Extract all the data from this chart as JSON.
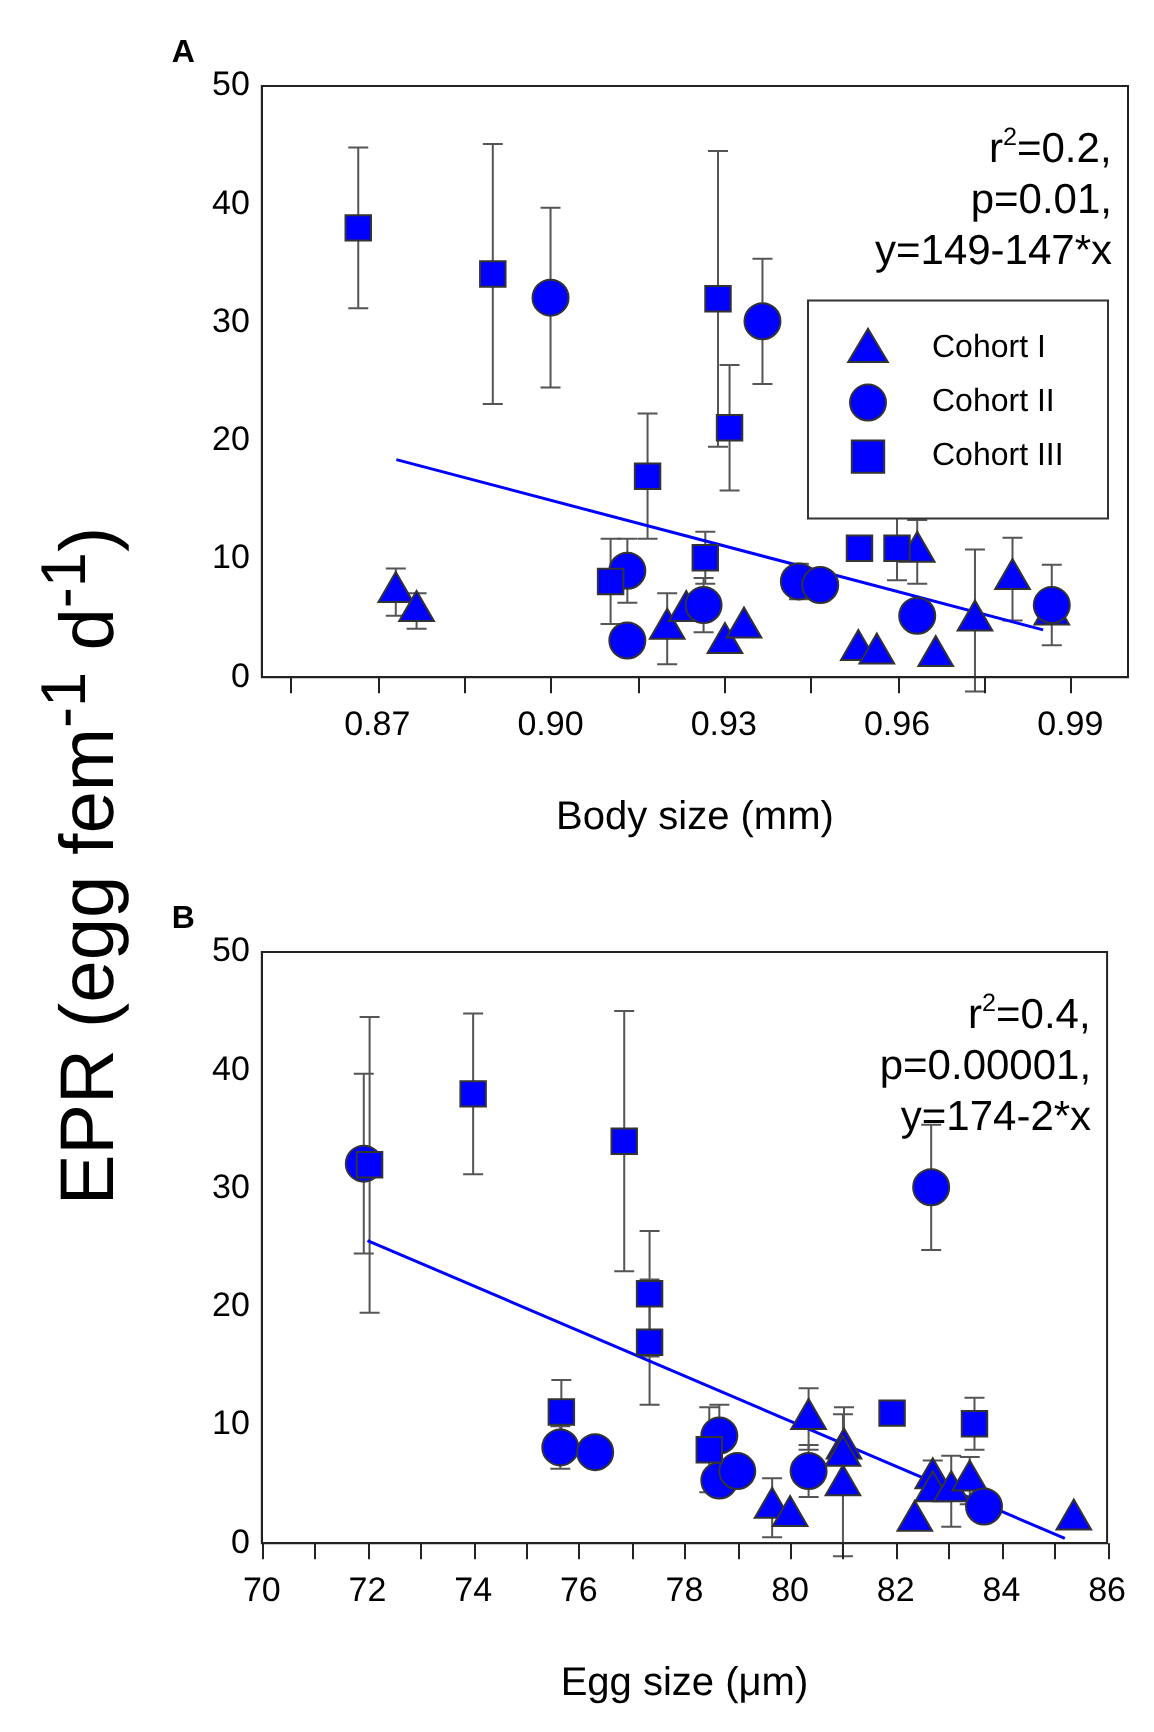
{
  "chart_data": [
    {
      "type": "scatter",
      "title": "A",
      "xlabel": "Body size (mm)",
      "ylabel": "EPR (egg fem$^{-1}$ d$^{-1}$)",
      "xlim": [
        0.85,
        1.0
      ],
      "xticks": [
        {
          "value": 0.855,
          "label": null
        },
        0.87,
        {
          "value": 0.885,
          "label": null
        },
        {
          "value": 0.9,
          "label": "0.90"
        },
        {
          "value": 0.915,
          "label": null
        },
        0.93,
        {
          "value": 0.945,
          "label": null
        },
        0.96,
        {
          "value": 0.975,
          "label": null
        },
        0.99
      ],
      "ylim": [
        0,
        50
      ],
      "yticks": [
        0,
        10,
        20,
        30,
        40,
        50
      ],
      "grid": false,
      "legend": "right",
      "annotations": [
        "r$^{2}$=0.2,",
        "p=0.01,",
        "y=149-147*x"
      ],
      "series": [
        {
          "name": "Cohort I",
          "color": "#0000ff",
          "marker": "triangle",
          "x": [
            0.8732,
            0.8768,
            0.9202,
            0.9235,
            0.9302,
            0.9335,
            0.9533,
            0.9565,
            0.9635,
            0.9667,
            0.9735,
            0.98,
            0.9868
          ],
          "values": [
            7.2,
            5.6,
            4.1,
            5.6,
            2.9,
            4.2,
            2.3,
            2.0,
            10.6,
            1.8,
            4.8,
            8.3,
            5.3
          ],
          "errors": [
            2,
            1.5,
            3,
            null,
            null,
            null,
            null,
            null,
            2.7,
            null,
            6,
            3.5,
            null
          ]
        },
        {
          "name": "Cohort II",
          "color": "#0000ff",
          "marker": "circle",
          "x": [
            0.9,
            0.9367,
            0.9133,
            0.9133,
            0.9265,
            0.943,
            0.9467,
            0.9635,
            0.9868
          ],
          "values": [
            32.1,
            30.1,
            9.0,
            3.1,
            6.1,
            8.1,
            7.8,
            5.2,
            6.1
          ],
          "errors": [
            7.6,
            5.3,
            2.7,
            null,
            2.3,
            1.5,
            null,
            null,
            3.4
          ]
        },
        {
          "name": "Cohort III",
          "color": "#0000ff",
          "marker": "square",
          "x": [
            0.8667,
            0.89,
            0.929,
            0.931,
            0.9168,
            0.9104,
            0.9268,
            0.9535,
            0.96
          ],
          "values": [
            38.0,
            34.1,
            32.0,
            21.1,
            17.0,
            8.1,
            10.1,
            10.9,
            10.9
          ],
          "errors": [
            6.8,
            11,
            12.5,
            5.3,
            5.3,
            3.6,
            2.2,
            null,
            2.7
          ]
        },
        {
          "type": "line",
          "color": "#0000ff",
          "marker": "none",
          "line_style": "solid",
          "x": [
            0.8733,
            0.9853
          ],
          "values": [
            18.4,
            4.0
          ]
        }
      ]
    },
    {
      "type": "scatter",
      "title": "B",
      "xlabel": "Egg size (μm)",
      "xlim": [
        70,
        86
      ],
      "xticks": [
        70,
        {
          "value": 71,
          "label": null
        },
        72,
        {
          "value": 73,
          "label": null
        },
        74,
        {
          "value": 75,
          "label": null
        },
        76,
        {
          "value": 77,
          "label": null
        },
        78,
        {
          "value": 79,
          "label": null
        },
        80,
        {
          "value": 81,
          "label": null
        },
        82,
        {
          "value": 83,
          "label": null
        },
        84,
        {
          "value": 85,
          "label": null
        },
        86
      ],
      "ylim": [
        0,
        50
      ],
      "yticks": [
        0,
        10,
        20,
        30,
        40,
        50
      ],
      "grid": false,
      "legend": false,
      "annotations": [
        "r$^{2}$=0.4,",
        "p=0.00001,",
        "y=174-2*x"
      ],
      "series": [
        {
          "color": "#0000ff",
          "marker": "triangle",
          "x": [
            79.66,
            80.0,
            80.35,
            81.02,
            81.0,
            81.0,
            82.36,
            82.7,
            82.7,
            83.05,
            83.4,
            85.37
          ],
          "values": [
            3.0,
            2.3,
            10.5,
            8.0,
            7.4,
            4.9,
            1.9,
            5.5,
            4.4,
            4.4,
            5.3,
            2.0
          ],
          "errors": [
            2.5,
            null,
            2.6,
            3.5,
            null,
            6,
            null,
            1.5,
            null,
            3,
            2,
            null
          ]
        },
        {
          "color": "#0000ff",
          "marker": "circle",
          "x": [
            71.93,
            82.67,
            75.65,
            76.31,
            78.66,
            78.66,
            79.0,
            80.35,
            83.67
          ],
          "values": [
            32.1,
            30.1,
            8.1,
            7.7,
            9.1,
            5.3,
            6.1,
            6.1,
            3.1
          ],
          "errors": [
            7.6,
            5.3,
            1.8,
            null,
            2.6,
            null,
            null,
            2.2,
            null
          ]
        },
        {
          "color": "#0000ff",
          "marker": "square",
          "x": [
            72.04,
            74.0,
            76.86,
            77.34,
            77.34,
            75.67,
            78.47,
            81.93,
            83.49
          ],
          "values": [
            32.0,
            38.0,
            34.0,
            21.1,
            17.0,
            11.1,
            7.9,
            11.0,
            10.1
          ],
          "errors": [
            12.5,
            6.8,
            11,
            5.3,
            5.3,
            2.7,
            3.6,
            null,
            2.2
          ]
        },
        {
          "type": "line",
          "color": "#0000ff",
          "marker": "none",
          "line_style": "solid",
          "x": [
            72,
            85.2
          ],
          "values": [
            25.6,
            0.4
          ]
        }
      ]
    }
  ]
}
